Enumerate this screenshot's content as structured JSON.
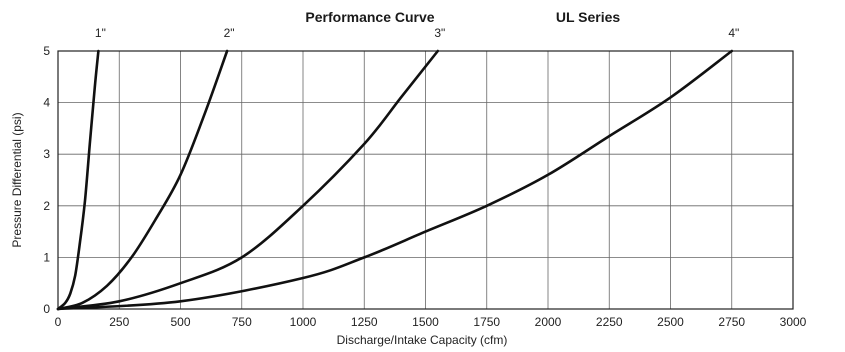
{
  "chart_data": {
    "type": "line",
    "title": "Performance Curve",
    "subtitle": "UL Series",
    "xlabel": "Discharge/Intake Capacity (cfm)",
    "ylabel": "Pressure Differential (psi)",
    "xlim": [
      0,
      3000
    ],
    "ylim": [
      0,
      5
    ],
    "xticks": [
      "0",
      "250",
      "500",
      "750",
      "1000",
      "1250",
      "1500",
      "1750",
      "2000",
      "2250",
      "2500",
      "2750",
      "3000"
    ],
    "yticks": [
      "0",
      "1",
      "2",
      "3",
      "4",
      "5"
    ],
    "grid": true,
    "series": [
      {
        "name": "1\"",
        "x": [
          0,
          30,
          50,
          70,
          90,
          110,
          130,
          150,
          165
        ],
        "y": [
          0,
          0.12,
          0.3,
          0.65,
          1.3,
          2.1,
          3.2,
          4.3,
          5.0
        ]
      },
      {
        "name": "2\"",
        "x": [
          0,
          100,
          200,
          300,
          400,
          500,
          600,
          690
        ],
        "y": [
          0,
          0.12,
          0.45,
          1.0,
          1.75,
          2.6,
          3.8,
          5.0
        ]
      },
      {
        "name": "3\"",
        "x": [
          0,
          250,
          500,
          750,
          1000,
          1250,
          1400,
          1550
        ],
        "y": [
          0,
          0.15,
          0.5,
          1.0,
          2.0,
          3.2,
          4.1,
          5.0
        ]
      },
      {
        "name": "4\"",
        "x": [
          0,
          500,
          1000,
          1250,
          1500,
          1750,
          2000,
          2250,
          2500,
          2750
        ],
        "y": [
          0,
          0.15,
          0.6,
          1.0,
          1.5,
          2.0,
          2.6,
          3.35,
          4.1,
          5.0
        ]
      }
    ]
  }
}
